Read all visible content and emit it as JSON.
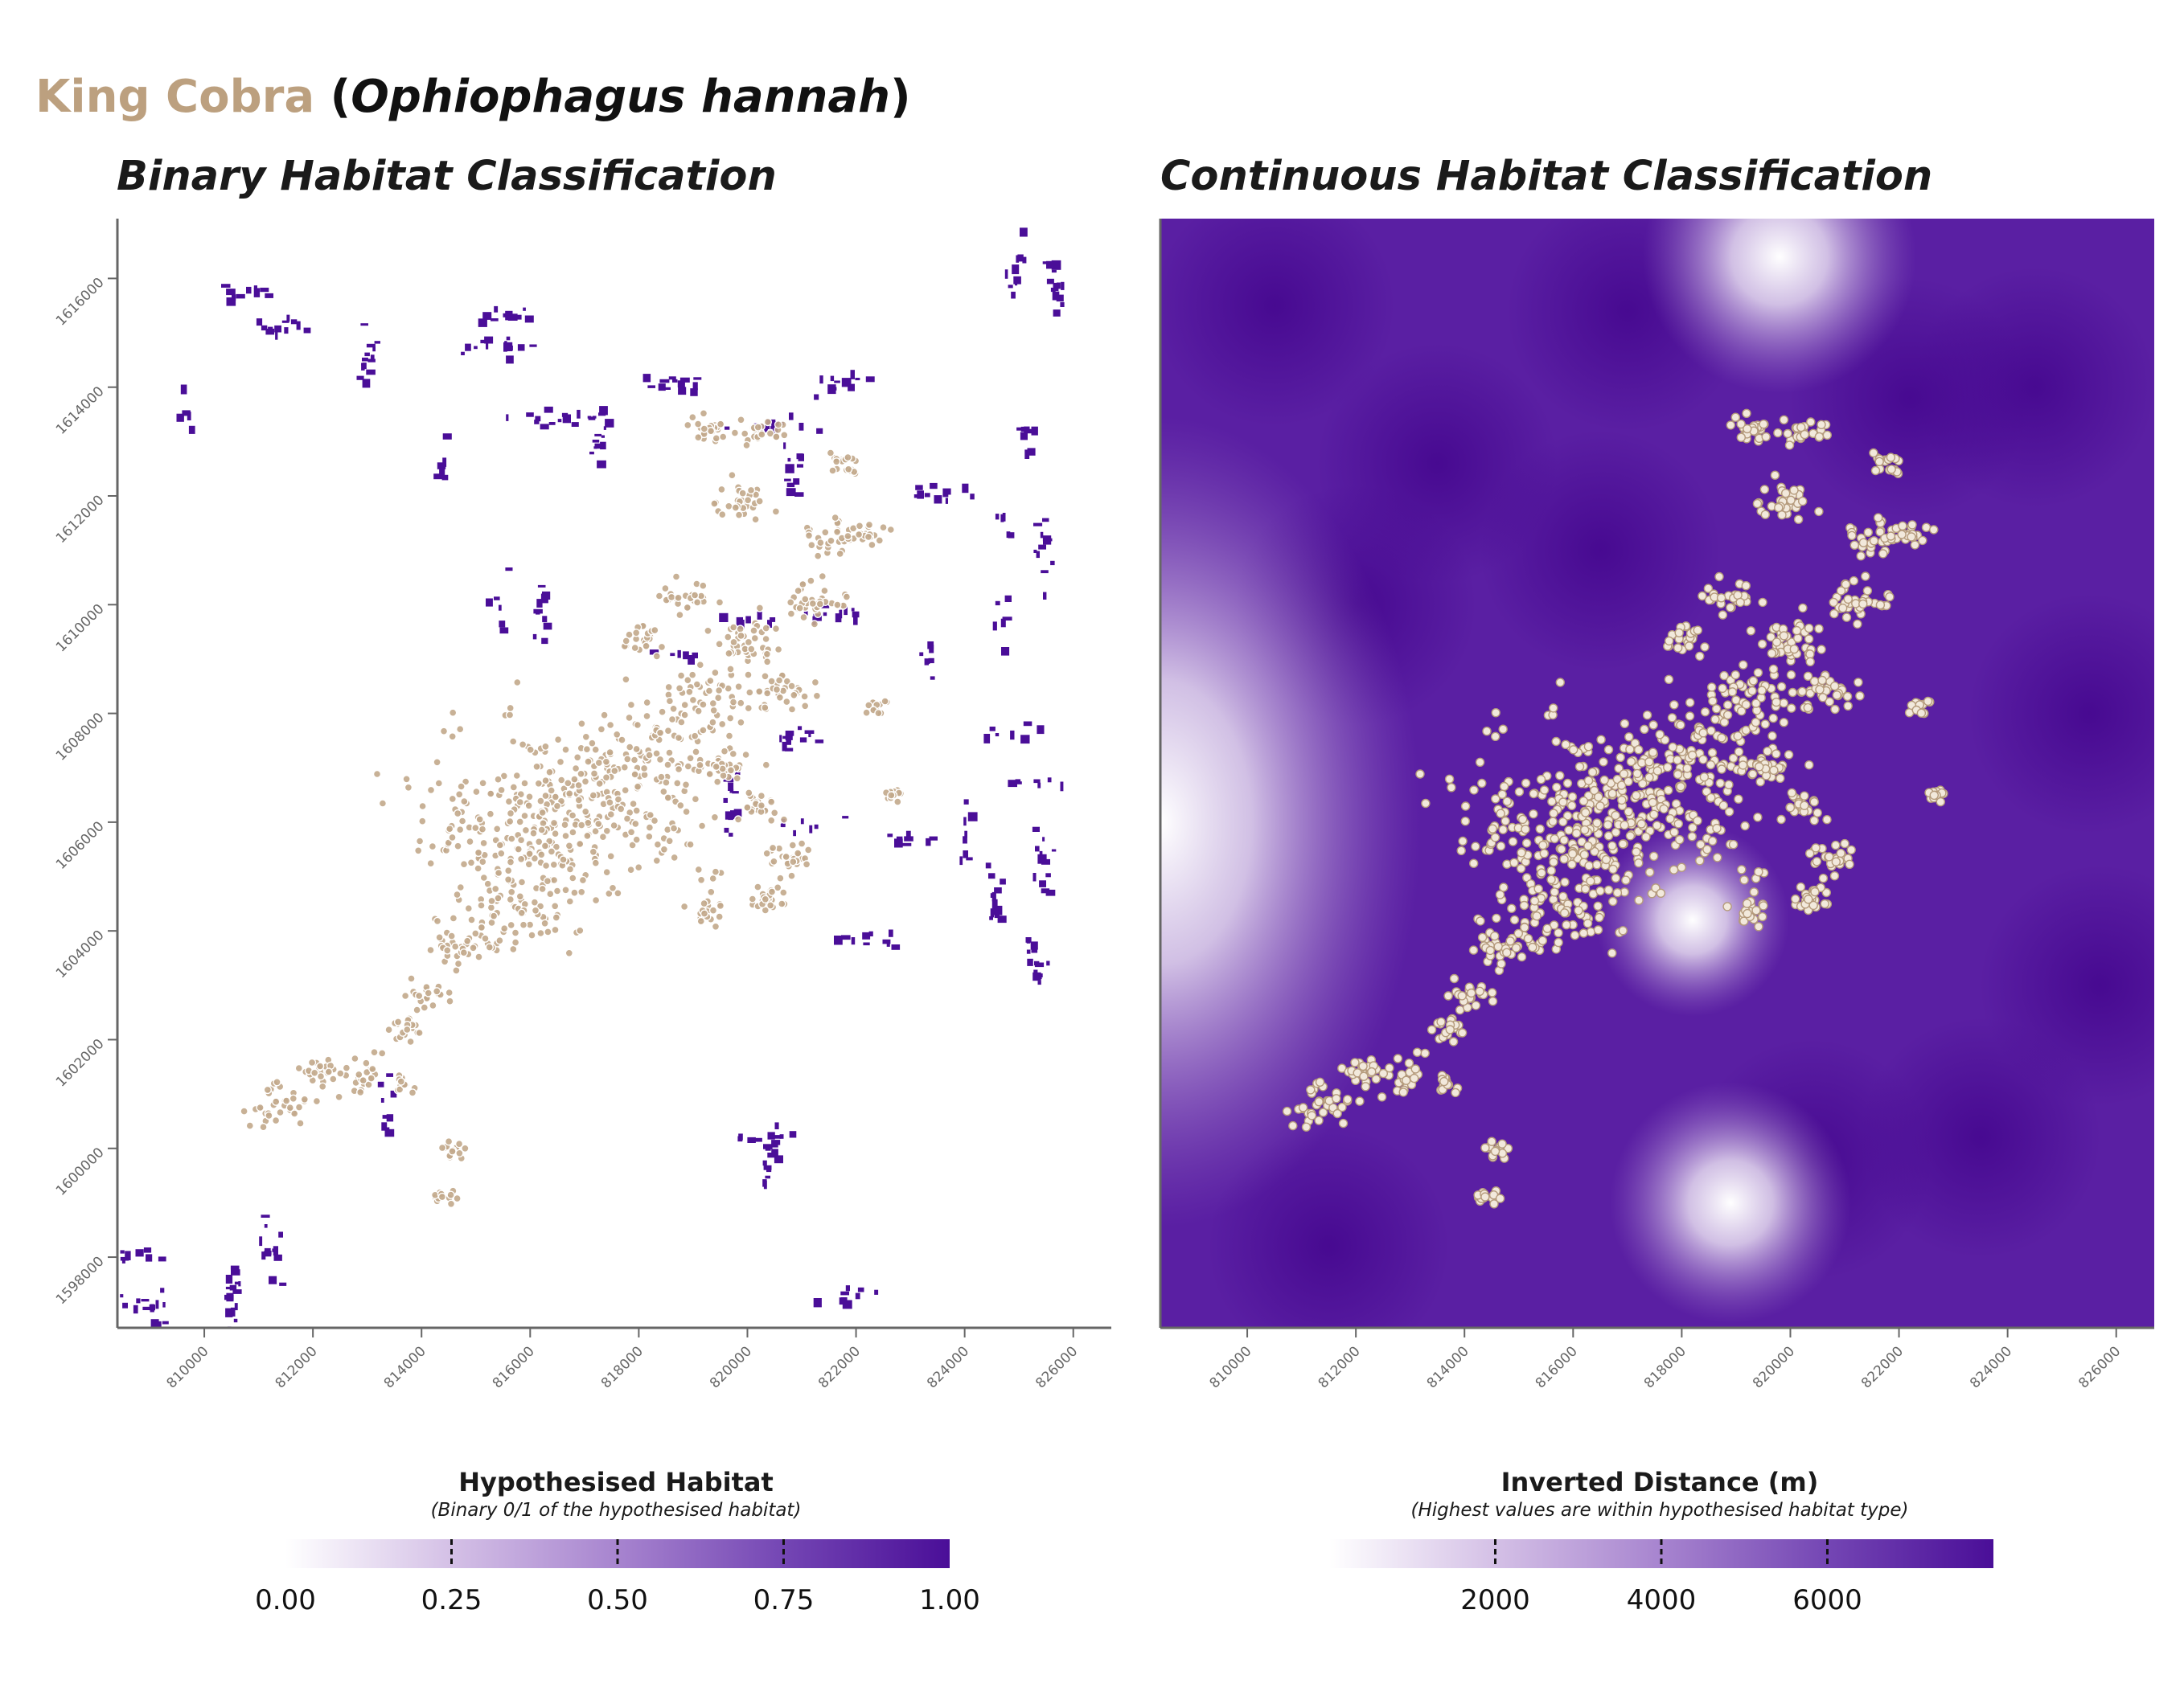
{
  "title": {
    "common_name": "King Cobra",
    "open_paren": " (",
    "scientific_name": "Ophiophagus hannah",
    "close_paren": ")"
  },
  "colors": {
    "accent": "#bca07f",
    "habitat_dark": "#4a0e98",
    "habitat_mid": "#9a72c6",
    "habitat_light": "#ffffff",
    "point_fill": "#c2a98b",
    "point_fill_light": "#f2e9dc",
    "axis": "#666666"
  },
  "chart_data": [
    {
      "type": "raster-map",
      "title": "Binary Habitat Classification",
      "xlim": [
        808400,
        826700
      ],
      "ylim": [
        1596700,
        1617100
      ],
      "x_ticks": [
        "810000",
        "812000",
        "814000",
        "816000",
        "818000",
        "820000",
        "822000",
        "824000",
        "826000"
      ],
      "y_ticks": [
        "1598000",
        "1600000",
        "1602000",
        "1604000",
        "1606000",
        "1608000",
        "1610000",
        "1612000",
        "1614000",
        "1616000"
      ],
      "legend": {
        "title": "Hypothesised Habitat",
        "subtitle": "(Binary 0/1 of the hypothesised habitat)",
        "ticks": [
          "0.00",
          "0.25",
          "0.50",
          "0.75",
          "1.00"
        ],
        "range": [
          0,
          1
        ]
      },
      "habitat_patches": [
        [
          808600,
          1598100
        ],
        [
          808800,
          1597200
        ],
        [
          809100,
          1597000
        ],
        [
          811200,
          1598200
        ],
        [
          810500,
          1597400
        ],
        [
          815400,
          1615400
        ],
        [
          813000,
          1614500
        ],
        [
          815300,
          1614800
        ],
        [
          814300,
          1612600
        ],
        [
          816500,
          1613500
        ],
        [
          817200,
          1613200
        ],
        [
          818600,
          1614100
        ],
        [
          820400,
          1613300
        ],
        [
          821700,
          1614100
        ],
        [
          820800,
          1612500
        ],
        [
          823400,
          1612100
        ],
        [
          824700,
          1611700
        ],
        [
          825400,
          1611000
        ],
        [
          824900,
          1616300
        ],
        [
          825600,
          1615900
        ],
        [
          809600,
          1613700
        ],
        [
          810600,
          1615800
        ],
        [
          811200,
          1615200
        ],
        [
          825100,
          1613200
        ],
        [
          815300,
          1610100
        ],
        [
          816200,
          1609900
        ],
        [
          818800,
          1609200
        ],
        [
          820100,
          1609800
        ],
        [
          821600,
          1609900
        ],
        [
          823300,
          1608900
        ],
        [
          824600,
          1609700
        ],
        [
          824800,
          1607700
        ],
        [
          825100,
          1606800
        ],
        [
          825400,
          1605400
        ],
        [
          824500,
          1604600
        ],
        [
          824000,
          1605800
        ],
        [
          825300,
          1603500
        ],
        [
          822200,
          1603900
        ],
        [
          822900,
          1605700
        ],
        [
          820800,
          1607600
        ],
        [
          819700,
          1606400
        ],
        [
          821000,
          1606000
        ],
        [
          813300,
          1600800
        ],
        [
          820200,
          1600200
        ],
        [
          820400,
          1599900
        ],
        [
          821800,
          1597300
        ]
      ]
    },
    {
      "type": "raster-map",
      "title": "Continuous Habitat Classification",
      "xlim": [
        808400,
        826700
      ],
      "ylim": [
        1596700,
        1617100
      ],
      "x_ticks": [
        "810000",
        "812000",
        "814000",
        "816000",
        "818000",
        "820000",
        "822000",
        "824000",
        "826000"
      ],
      "legend": {
        "title": "Inverted Distance (m)",
        "subtitle": "(Highest values are within hypothesised habitat type)",
        "ticks": [
          "2000",
          "4000",
          "6000"
        ],
        "range": [
          0,
          8000
        ]
      },
      "light_zones": [
        [
          808400,
          1606000
        ],
        [
          819800,
          1616400
        ],
        [
          818900,
          1599000
        ],
        [
          818200,
          1604200
        ]
      ]
    }
  ],
  "occurrence_clusters": [
    [
      816400,
      1606400,
      3200
    ],
    [
      817600,
      1606300,
      2800
    ],
    [
      815600,
      1605600,
      2200
    ],
    [
      818400,
      1607300,
      1800
    ],
    [
      815900,
      1604300,
      1600
    ],
    [
      819300,
      1608300,
      1200
    ],
    [
      820000,
      1609300,
      900
    ],
    [
      821300,
      1610100,
      800
    ],
    [
      821600,
      1611200,
      700
    ],
    [
      820700,
      1608400,
      700
    ],
    [
      819900,
      1611900,
      700
    ],
    [
      819300,
      1613200,
      600
    ],
    [
      820300,
      1613200,
      500
    ],
    [
      821800,
      1612600,
      400
    ],
    [
      822300,
      1611300,
      400
    ],
    [
      820800,
      1605300,
      600
    ],
    [
      820400,
      1604600,
      500
    ],
    [
      820200,
      1606300,
      500
    ],
    [
      819300,
      1604300,
      400
    ],
    [
      814700,
      1603700,
      700
    ],
    [
      814100,
      1602800,
      500
    ],
    [
      813700,
      1602200,
      400
    ],
    [
      812900,
      1601300,
      600
    ],
    [
      811400,
      1600800,
      800
    ],
    [
      812100,
      1601400,
      500
    ],
    [
      813700,
      1601200,
      300
    ],
    [
      814600,
      1600000,
      300
    ],
    [
      814400,
      1599100,
      250
    ],
    [
      818900,
      1610100,
      600
    ],
    [
      818100,
      1609400,
      500
    ],
    [
      822400,
      1608100,
      300
    ],
    [
      822700,
      1606500,
      250
    ],
    [
      819600,
      1607000,
      500
    ]
  ]
}
